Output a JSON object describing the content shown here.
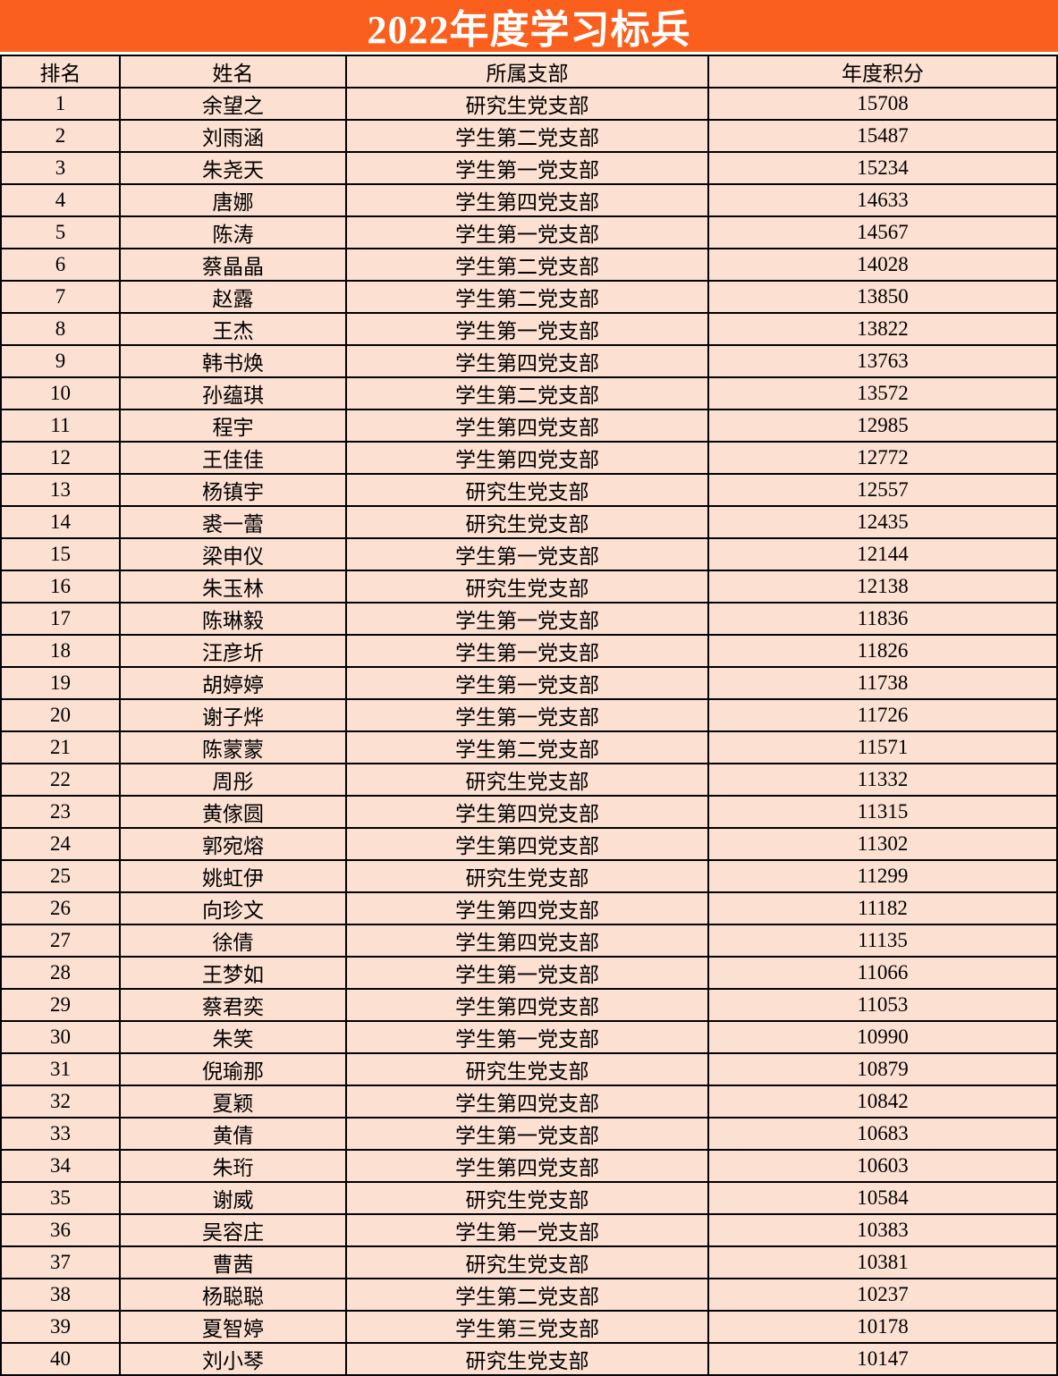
{
  "title": "2022年度学习标兵",
  "colors": {
    "title_bg": "#FA5F1E",
    "title_text": "#FFFFFF",
    "cell_bg": "#FCE0D2",
    "grid_line": "#000000"
  },
  "table": {
    "headers": [
      "排名",
      "姓名",
      "所属支部",
      "年度积分"
    ],
    "rows": [
      {
        "rank": "1",
        "name": "余望之",
        "branch": "研究生党支部",
        "score": "15708"
      },
      {
        "rank": "2",
        "name": "刘雨涵",
        "branch": "学生第二党支部",
        "score": "15487"
      },
      {
        "rank": "3",
        "name": "朱尧天",
        "branch": "学生第一党支部",
        "score": "15234"
      },
      {
        "rank": "4",
        "name": "唐娜",
        "branch": "学生第四党支部",
        "score": "14633"
      },
      {
        "rank": "5",
        "name": "陈涛",
        "branch": "学生第一党支部",
        "score": "14567"
      },
      {
        "rank": "6",
        "name": "蔡晶晶",
        "branch": "学生第二党支部",
        "score": "14028"
      },
      {
        "rank": "7",
        "name": "赵露",
        "branch": "学生第二党支部",
        "score": "13850"
      },
      {
        "rank": "8",
        "name": "王杰",
        "branch": "学生第一党支部",
        "score": "13822"
      },
      {
        "rank": "9",
        "name": "韩书焕",
        "branch": "学生第四党支部",
        "score": "13763"
      },
      {
        "rank": "10",
        "name": "孙蕴琪",
        "branch": "学生第二党支部",
        "score": "13572"
      },
      {
        "rank": "11",
        "name": "程宇",
        "branch": "学生第四党支部",
        "score": "12985"
      },
      {
        "rank": "12",
        "name": "王佳佳",
        "branch": "学生第四党支部",
        "score": "12772"
      },
      {
        "rank": "13",
        "name": "杨镇宇",
        "branch": "研究生党支部",
        "score": "12557"
      },
      {
        "rank": "14",
        "name": "裘一蕾",
        "branch": "研究生党支部",
        "score": "12435"
      },
      {
        "rank": "15",
        "name": "梁申仪",
        "branch": "学生第一党支部",
        "score": "12144"
      },
      {
        "rank": "16",
        "name": "朱玉林",
        "branch": "研究生党支部",
        "score": "12138"
      },
      {
        "rank": "17",
        "name": "陈琳毅",
        "branch": "学生第一党支部",
        "score": "11836"
      },
      {
        "rank": "18",
        "name": "汪彦圻",
        "branch": "学生第一党支部",
        "score": "11826"
      },
      {
        "rank": "19",
        "name": "胡婷婷",
        "branch": "学生第一党支部",
        "score": "11738"
      },
      {
        "rank": "20",
        "name": "谢子烨",
        "branch": "学生第一党支部",
        "score": "11726"
      },
      {
        "rank": "21",
        "name": "陈蒙蒙",
        "branch": "学生第二党支部",
        "score": "11571"
      },
      {
        "rank": "22",
        "name": "周彤",
        "branch": "研究生党支部",
        "score": "11332"
      },
      {
        "rank": "23",
        "name": "黄傢圆",
        "branch": "学生第四党支部",
        "score": "11315"
      },
      {
        "rank": "24",
        "name": "郭宛熔",
        "branch": "学生第四党支部",
        "score": "11302"
      },
      {
        "rank": "25",
        "name": "姚虹伊",
        "branch": "研究生党支部",
        "score": "11299"
      },
      {
        "rank": "26",
        "name": "向珍文",
        "branch": "学生第四党支部",
        "score": "11182"
      },
      {
        "rank": "27",
        "name": "徐倩",
        "branch": "学生第四党支部",
        "score": "11135"
      },
      {
        "rank": "28",
        "name": "王梦如",
        "branch": "学生第一党支部",
        "score": "11066"
      },
      {
        "rank": "29",
        "name": "蔡君奕",
        "branch": "学生第四党支部",
        "score": "11053"
      },
      {
        "rank": "30",
        "name": "朱笑",
        "branch": "学生第一党支部",
        "score": "10990"
      },
      {
        "rank": "31",
        "name": "倪瑜那",
        "branch": "研究生党支部",
        "score": "10879"
      },
      {
        "rank": "32",
        "name": "夏颖",
        "branch": "学生第四党支部",
        "score": "10842"
      },
      {
        "rank": "33",
        "name": "黄倩",
        "branch": "学生第一党支部",
        "score": "10683"
      },
      {
        "rank": "34",
        "name": "朱珩",
        "branch": "学生第四党支部",
        "score": "10603"
      },
      {
        "rank": "35",
        "name": "谢威",
        "branch": "研究生党支部",
        "score": "10584"
      },
      {
        "rank": "36",
        "name": "吴容庄",
        "branch": "学生第一党支部",
        "score": "10383"
      },
      {
        "rank": "37",
        "name": "曹茜",
        "branch": "研究生党支部",
        "score": "10381"
      },
      {
        "rank": "38",
        "name": "杨聪聪",
        "branch": "学生第二党支部",
        "score": "10237"
      },
      {
        "rank": "39",
        "name": "夏智婷",
        "branch": "学生第三党支部",
        "score": "10178"
      },
      {
        "rank": "40",
        "name": "刘小琴",
        "branch": "研究生党支部",
        "score": "10147"
      }
    ]
  }
}
